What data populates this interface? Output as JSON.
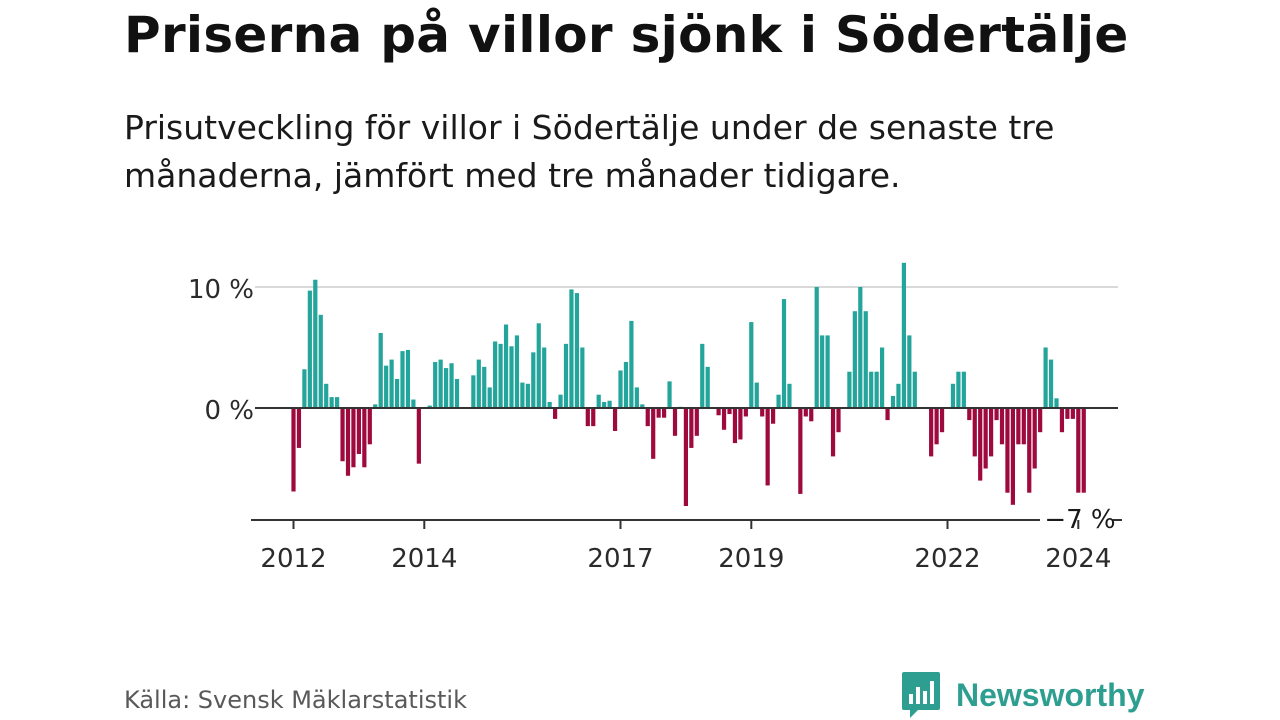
{
  "source": "Källa: Svensk Mäklarstatistik",
  "brand": {
    "name": "Newsworthy",
    "icon": "newsworthy-logo-icon",
    "color": "#2e9e91"
  },
  "chart_data": {
    "type": "bar",
    "title": "Priserna på villor sjönk i Södertälje",
    "subtitle": "Prisutveckling för villor i Södertälje under de senaste tre månaderna, jämfört med tre månader tidigare.",
    "xlabel": "",
    "ylabel": "",
    "ylim": [
      -9.4,
      11.5
    ],
    "y_ticks": [
      {
        "value": 0,
        "label": "0 %"
      },
      {
        "value": 10,
        "label": "10 %"
      }
    ],
    "x_tick_labels": [
      {
        "label": "2012",
        "year": 2012
      },
      {
        "label": "2014",
        "year": 2014
      },
      {
        "label": "2017",
        "year": 2017
      },
      {
        "label": "2019",
        "year": 2019
      },
      {
        "label": "2022",
        "year": 2022
      },
      {
        "label": "2024",
        "year": 2024
      }
    ],
    "last_value_label": "−7 %",
    "start": "2012-01",
    "frequency": "monthly",
    "positive_color": "#23a59b",
    "negative_color": "#9e0a3d",
    "grid": true,
    "values": [
      -6.9,
      -3.3,
      3.2,
      9.7,
      10.6,
      7.7,
      2.0,
      0.9,
      0.9,
      -4.4,
      -5.6,
      -4.9,
      -3.8,
      -4.9,
      -3.0,
      0.3,
      6.2,
      3.5,
      4.0,
      2.4,
      4.7,
      4.8,
      0.7,
      -4.6,
      0,
      0.2,
      3.8,
      4.0,
      3.3,
      3.7,
      2.4,
      0,
      0,
      2.7,
      4.0,
      3.4,
      1.7,
      5.5,
      5.3,
      6.9,
      5.1,
      6.0,
      2.1,
      2.0,
      4.6,
      7.0,
      5.0,
      0.5,
      -0.9,
      1.1,
      5.3,
      9.8,
      9.5,
      5.0,
      -1.5,
      -1.5,
      1.1,
      0.5,
      0.6,
      -1.9,
      3.1,
      3.8,
      7.2,
      1.7,
      0.3,
      -1.5,
      -4.2,
      -0.8,
      -0.8,
      2.2,
      -2.3,
      0.1,
      -8.1,
      -3.3,
      -2.3,
      5.3,
      3.4,
      0,
      -0.6,
      -1.8,
      -0.5,
      -2.9,
      -2.6,
      -0.7,
      7.1,
      2.1,
      -0.7,
      -6.4,
      -1.3,
      1.1,
      9.0,
      2.0,
      0,
      -7.1,
      -0.7,
      -1.1,
      10.0,
      6.0,
      6.0,
      -4.0,
      -2.0,
      0,
      3.0,
      8.0,
      10.0,
      8.0,
      3.0,
      3.0,
      5.0,
      -1.0,
      1.0,
      2.0,
      12.0,
      6.0,
      3.0,
      0,
      0,
      -4.0,
      -3.0,
      -2.0,
      0,
      2.0,
      3.0,
      3.0,
      -1.0,
      -4.0,
      -6.0,
      -5.0,
      -4.0,
      -1.0,
      -3.0,
      -7.0,
      -8.0,
      -3.0,
      -3.0,
      -7.0,
      -5.0,
      -2.0,
      5.0,
      4.0,
      0.8,
      -2.0,
      -0.9,
      -0.9,
      -7.0,
      -7.0
    ]
  }
}
